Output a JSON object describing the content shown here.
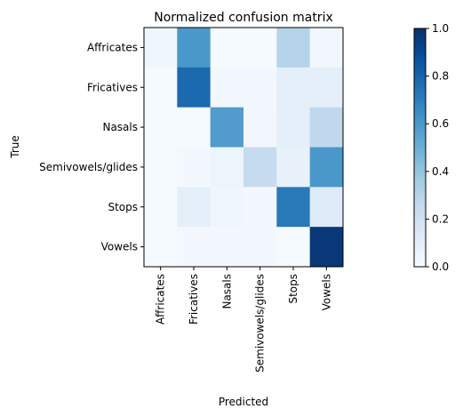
{
  "chart_data": {
    "type": "heatmap",
    "title": "Normalized confusion matrix",
    "xlabel": "Predicted",
    "ylabel": "True",
    "x_categories": [
      "Affricates",
      "Fricatives",
      "Nasals",
      "Semivowels/glides",
      "Stops",
      "Vowels"
    ],
    "y_categories": [
      "Affricates",
      "Fricatives",
      "Nasals",
      "Semivowels/glides",
      "Stops",
      "Vowels"
    ],
    "values": [
      [
        0.04,
        0.6,
        0.01,
        0.01,
        0.3,
        0.03
      ],
      [
        0.01,
        0.78,
        0.02,
        0.02,
        0.09,
        0.09
      ],
      [
        0.01,
        0.01,
        0.58,
        0.03,
        0.09,
        0.27
      ],
      [
        0.01,
        0.02,
        0.05,
        0.25,
        0.07,
        0.6
      ],
      [
        0.01,
        0.09,
        0.04,
        0.02,
        0.72,
        0.13
      ],
      [
        0.01,
        0.02,
        0.02,
        0.02,
        0.01,
        0.97
      ]
    ],
    "colorbar": {
      "range": [
        0.0,
        1.0
      ],
      "ticks": [
        "0.0",
        "0.2",
        "0.4",
        "0.6",
        "0.8",
        "1.0"
      ],
      "colormap": "Blues"
    }
  }
}
